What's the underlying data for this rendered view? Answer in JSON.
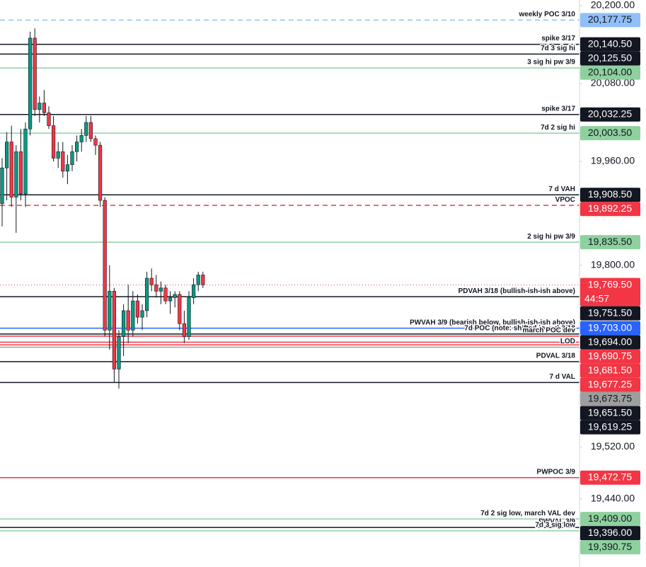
{
  "chart_data": {
    "type": "candlestick",
    "ylim": [
      19335.0,
      20208.75
    ],
    "yticks": [
      {
        "value": 20200,
        "label": "20,200.00"
      },
      {
        "value": 20080,
        "label": "20,080.00"
      },
      {
        "value": 19960,
        "label": "19,960.00"
      },
      {
        "value": 19800,
        "label": "19,800.00"
      },
      {
        "value": 19520,
        "label": "19,520.00"
      },
      {
        "value": 19440,
        "label": "19,440.00"
      }
    ],
    "up_color": "#089981",
    "down_color": "#f23645",
    "open": [
      19895,
      19950,
      19990,
      19905,
      19975,
      19910,
      20010,
      20150,
      20040,
      20050,
      20035,
      20015,
      19965,
      19975,
      19945,
      19955,
      19975,
      19990,
      20000,
      20020,
      19995,
      19985,
      19900,
      19700,
      19760,
      19640,
      19690,
      19730,
      19700,
      19745,
      19720,
      19730,
      19780,
      19770,
      19760,
      19765,
      19745,
      19750,
      19755,
      19710,
      19690,
      19750,
      19770,
      19785
    ],
    "high": [
      19965,
      20005,
      20015,
      19985,
      20010,
      20020,
      20160,
      20165,
      20060,
      20070,
      20045,
      20030,
      19990,
      19990,
      19970,
      19985,
      20000,
      20010,
      20030,
      20030,
      20000,
      19990,
      19905,
      19800,
      19765,
      19700,
      19740,
      19770,
      19760,
      19755,
      19740,
      19790,
      19795,
      19785,
      19775,
      19770,
      19760,
      19760,
      19760,
      19730,
      19760,
      19780,
      19790,
      19790
    ],
    "low": [
      19860,
      19900,
      19890,
      19850,
      19900,
      19890,
      20000,
      20030,
      20020,
      20030,
      20010,
      19960,
      19950,
      19935,
      19925,
      19945,
      19960,
      19975,
      19990,
      19990,
      19970,
      19890,
      19690,
      19670,
      19620,
      19610,
      19660,
      19680,
      19690,
      19710,
      19700,
      19720,
      19760,
      19750,
      19740,
      19740,
      19725,
      19735,
      19700,
      19680,
      19685,
      19740,
      19760,
      19765
    ],
    "close": [
      19950,
      19990,
      19905,
      19975,
      19910,
      20010,
      20150,
      20040,
      20050,
      20035,
      20015,
      19965,
      19975,
      19945,
      19955,
      19975,
      19990,
      20000,
      20020,
      19995,
      19985,
      19900,
      19700,
      19760,
      19640,
      19690,
      19730,
      19700,
      19745,
      19720,
      19730,
      19780,
      19770,
      19760,
      19765,
      19745,
      19750,
      19755,
      19710,
      19690,
      19750,
      19770,
      19785,
      19770
    ],
    "levels": [
      {
        "label": "weekly POC 3/10",
        "value": 20177.75,
        "value_label": "20,177.75",
        "color": "#90bff9",
        "line": "dashed"
      },
      {
        "label": "spike 3/17",
        "value": 20140.5,
        "value_label": "20,140.50",
        "color": "#131722",
        "line": "solid"
      },
      {
        "label": "7d 3 sig hi",
        "value": 20125.5,
        "value_label": "20,125.50",
        "color": "#131722",
        "line": "solid"
      },
      {
        "label": "3 sig hi pw 3/9",
        "value": 20104.0,
        "value_label": "20,104.00",
        "color": "#8fd19e",
        "line": "solid"
      },
      {
        "label": "spike 3/17",
        "value": 20032.25,
        "value_label": "20,032.25",
        "color": "#131722",
        "line": "solid"
      },
      {
        "label": "7d 2 sig hi",
        "value": 20003.5,
        "value_label": "20,003.50",
        "color": "#8fd19e",
        "line": "solid"
      },
      {
        "label": "7 d VAH",
        "value": 19908.5,
        "value_label": "19,908.50",
        "color": "#131722",
        "line": "solid"
      },
      {
        "label": "VPOC",
        "value": 19892.25,
        "value_label": "19,892.25",
        "color": "#f23645",
        "line": "dashed"
      },
      {
        "label": "2 sig hi pw 3/9",
        "value": 19835.5,
        "value_label": "19,835.50",
        "color": "#8fd19e",
        "line": "solid"
      },
      {
        "value": 19769.5,
        "value_label": "19,769.50",
        "countdown": "44:57",
        "color": "#f23645",
        "line": "dotted"
      },
      {
        "label": "PDVAH 3/18 (bullish-ish-ish above)",
        "value": 19751.5,
        "value_label": "19,751.50",
        "color": "#131722",
        "line": "solid"
      },
      {
        "label": "PWVAH 3/9 (bearish below, bullish-ish-ish above)",
        "value": 19703.0,
        "value_label": "19,703.00",
        "color": "#2962ff",
        "line": "solid"
      },
      {
        "label": "7d POC (note: shifted lower) 3/18",
        "value": 19694.0,
        "value_label": "19,694.00",
        "color": "#131722",
        "line": "solid"
      },
      {
        "label": "march POC dev",
        "value": 19690.75,
        "value_label": "19,690.75",
        "color": "#f23645",
        "line": "solid"
      },
      {
        "value": 19681.5,
        "value_label": "19,681.50",
        "color": "#f23645",
        "line": "solid"
      },
      {
        "value": 19677.25,
        "value_label": "19,677.25",
        "color": "#f23645",
        "line": "solid"
      },
      {
        "label": "LOD",
        "value": 19673.75,
        "value_label": "19,673.75",
        "color": "#9e9e9e",
        "line": "solid"
      },
      {
        "label": "PDVAL 3/18",
        "value": 19651.5,
        "value_label": "19,651.50",
        "color": "#131722",
        "line": "solid"
      },
      {
        "label": "7 d VAL",
        "value": 19619.25,
        "value_label": "19,619.25",
        "color": "#131722",
        "line": "solid"
      },
      {
        "label": "PWPOC 3/9",
        "value": 19472.75,
        "value_label": "19,472.75",
        "color": "#f23645",
        "line": "solid"
      },
      {
        "label": "7d 2 sig low, march VAL dev",
        "value": 19409.0,
        "value_label": "19,409.00",
        "color": "#8fd19e",
        "line": "solid"
      },
      {
        "label": "PWVAL 3/9",
        "value": 19396.0,
        "value_label": "19,396.00",
        "color": "#131722",
        "line": "solid"
      },
      {
        "label": "7d 3 sig low",
        "value": 19390.75,
        "value_label": "19,390.75",
        "color": "#8fd19e",
        "line": "solid"
      }
    ]
  }
}
